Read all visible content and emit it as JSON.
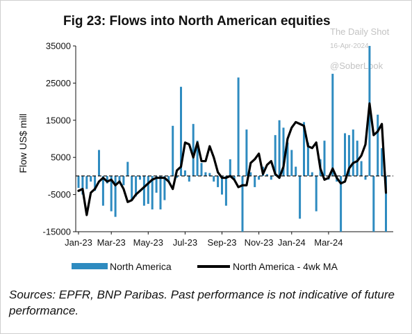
{
  "chart_data": {
    "type": "bar",
    "title": "Fig 23: Flows into North American equities",
    "ylabel": "Flow US$ mill",
    "xlabel": "",
    "ylim": [
      -15000,
      35000
    ],
    "yticks": [
      35000,
      25000,
      15000,
      5000,
      -5000,
      -15000
    ],
    "ytick_labels": [
      "35000",
      "25000",
      "15000",
      "5000",
      "-5000",
      "-15000"
    ],
    "xtick_labels": [
      "Jan-23",
      "Mar-23",
      "May-23",
      "Jul-23",
      "Sep-23",
      "Nov-23",
      "Jan-24",
      "Mar-24"
    ],
    "xtick_week_index": [
      0,
      8,
      17,
      26,
      35,
      44,
      52,
      61
    ],
    "grid": false,
    "zero_line": "dashed",
    "legend_position": "bottom",
    "series": [
      {
        "name": "North America",
        "kind": "bar",
        "color": "#2e8bc0",
        "values": [
          -3200,
          -5000,
          -3500,
          -1500,
          -4000,
          7000,
          -8000,
          -2000,
          -9500,
          -11000,
          -1500,
          -2500,
          3800,
          -6500,
          -5500,
          -1000,
          -8000,
          -7500,
          -9000,
          -4500,
          -9000,
          -6500,
          -1500,
          13500,
          -500,
          24000,
          1500,
          -1500,
          14000,
          9500,
          3500,
          1000,
          800,
          -1500,
          -3000,
          -5000,
          -8000,
          4500,
          -1000,
          26500,
          -15000,
          12500,
          1000,
          -3000,
          -1000,
          2500,
          500,
          -1000,
          11000,
          15000,
          13000,
          9000,
          7000,
          2500,
          -11500,
          14500,
          9000,
          1000,
          -9500,
          4500,
          9500,
          -1000,
          27500,
          -1500,
          -15000,
          11500,
          11000,
          12500,
          9500,
          4000,
          -1000,
          35000,
          -15000,
          16500,
          7500,
          -15000
        ]
      },
      {
        "name": "North America - 4wk MA",
        "kind": "line",
        "color": "#000000",
        "values": [
          -4000,
          -3500,
          -10500,
          -4500,
          -3500,
          -1500,
          -500,
          -1500,
          -1000,
          -2500,
          -1500,
          -3500,
          -7000,
          -6500,
          -5000,
          -4000,
          -3000,
          -2000,
          -1000,
          -500,
          -500,
          -500,
          -1500,
          -3500,
          1500,
          2500,
          9000,
          8500,
          5000,
          9000,
          4000,
          4000,
          8000,
          5000,
          1000,
          -500,
          -500,
          0,
          -1000,
          -3000,
          -2500,
          -2500,
          3500,
          4500,
          6000,
          500,
          3000,
          4000,
          500,
          -500,
          2500,
          10000,
          13000,
          14500,
          14000,
          13500,
          8000,
          7500,
          9000,
          2000,
          -1000,
          -500,
          2000,
          -500,
          -2000,
          -1500,
          2000,
          3500,
          4000,
          5500,
          8500,
          19500,
          11000,
          12000,
          14000,
          -4500
        ]
      }
    ]
  },
  "watermark": {
    "source": "The Daily Shot",
    "date": "16-Apr-2024",
    "handle": "@SoberLook"
  },
  "footnote": "Sources: EPFR, BNP Paribas. Past performance is not indicative of future performance."
}
